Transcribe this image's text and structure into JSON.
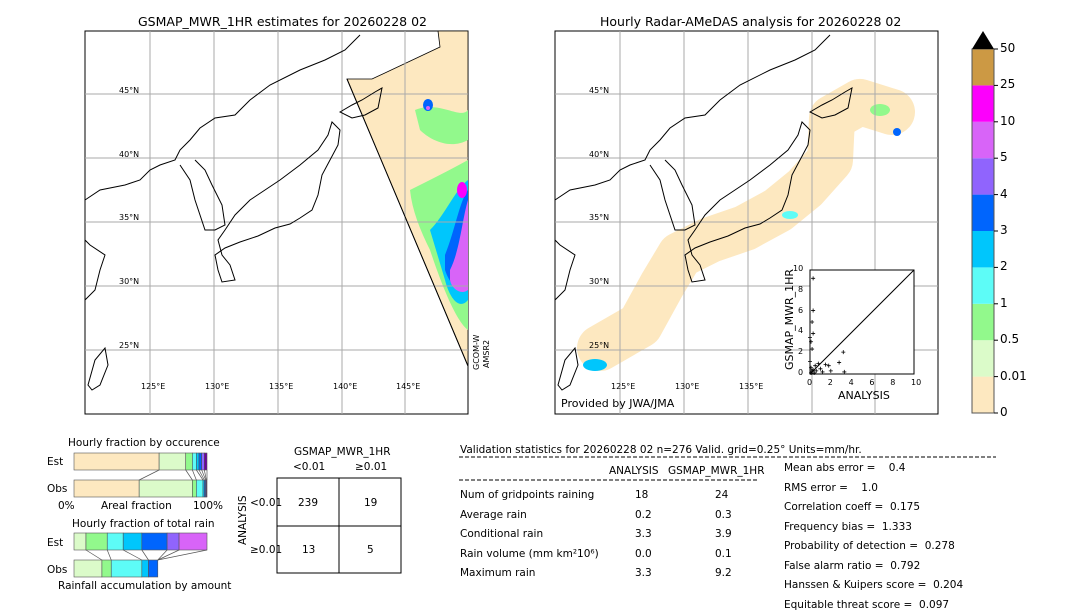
{
  "left_map": {
    "title": "GSMAP_MWR_1HR estimates for 20260228 02",
    "sensor_label_1": "GCOM-W",
    "sensor_label_2": "AMSR2",
    "lat_labels": [
      "45°N",
      "40°N",
      "35°N",
      "30°N",
      "25°N"
    ],
    "lon_labels": [
      "125°E",
      "130°E",
      "135°E",
      "140°E",
      "145°E"
    ]
  },
  "right_map": {
    "title": "Hourly Radar-AMeDAS analysis for 20260228 02",
    "credit": "Provided by JWA/JMA",
    "lat_labels": [
      "45°N",
      "40°N",
      "35°N",
      "30°N",
      "25°N"
    ],
    "lon_labels": [
      "125°E",
      "130°E",
      "135°E"
    ]
  },
  "colorbar": {
    "ticks": [
      "0",
      "0.01",
      "0.5",
      "1",
      "2",
      "3",
      "4",
      "5",
      "10",
      "25",
      "50"
    ],
    "colors": [
      "#fde8c0",
      "#dbfbc9",
      "#92f98c",
      "#5dfcf7",
      "#00c6fc",
      "#0065fd",
      "#9064fd",
      "#d864f8",
      "#fc00fc",
      "#cc9944"
    ],
    "extend_color": "#000000"
  },
  "chart_data": [
    {
      "type": "scatter",
      "xlabel": "ANALYSIS",
      "ylabel": "GSMAP_MWR_1HR",
      "xlim": [
        0,
        10
      ],
      "ylim": [
        0,
        10
      ],
      "xticks": [
        "0",
        "2",
        "4",
        "6",
        "8",
        "10"
      ],
      "yticks": [
        "0",
        "2",
        "4",
        "6",
        "8",
        "10"
      ],
      "points": [
        [
          0.3,
          9.2
        ],
        [
          0.3,
          6.1
        ],
        [
          0.2,
          5.0
        ],
        [
          0.3,
          3.9
        ],
        [
          0.0,
          3.5
        ],
        [
          0.1,
          3.1
        ],
        [
          0.2,
          2.4
        ],
        [
          0.0,
          1.2
        ],
        [
          3.2,
          2.1
        ],
        [
          2.8,
          1.1
        ],
        [
          3.3,
          0.2
        ],
        [
          1.0,
          0.5
        ],
        [
          1.5,
          0.9
        ],
        [
          1.8,
          0.8
        ],
        [
          2.0,
          0.3
        ],
        [
          0.5,
          0.8
        ],
        [
          0.6,
          0.3
        ],
        [
          0.2,
          0.3
        ],
        [
          0.1,
          0.6
        ],
        [
          0.4,
          0.1
        ],
        [
          1.2,
          0.2
        ],
        [
          0.8,
          1.0
        ],
        [
          0.3,
          0.4
        ],
        [
          0.1,
          0.1
        ]
      ]
    },
    {
      "type": "bar",
      "title": "Hourly fraction by occurence",
      "xlabel": "Areal fraction",
      "xtick_left": "0%",
      "xtick_right": "100%",
      "categories": [
        "Est",
        "Obs"
      ],
      "segments": [
        [
          0.64,
          0.2,
          0.05,
          0.03,
          0.02,
          0.02,
          0.02,
          0.02
        ],
        [
          0.49,
          0.4,
          0.03,
          0.05,
          0.01,
          0.01,
          0.005,
          0.005
        ]
      ]
    },
    {
      "type": "bar",
      "title": "Hourly fraction of total rain",
      "xlabel": "Rainfall accumulation by amount",
      "categories": [
        "Est",
        "Obs"
      ],
      "segments": [
        [
          0.09,
          0.16,
          0.12,
          0.14,
          0.19,
          0.09,
          0.21
        ],
        [
          0.21,
          0.07,
          0.23,
          0.05,
          0.07,
          0,
          0
        ]
      ]
    },
    {
      "type": "table",
      "title": "GSMAP_MWR_1HR",
      "col_headers": [
        "<0.01",
        "≥0.01"
      ],
      "row_label": "ANALYSIS",
      "row_headers": [
        "<0.01",
        "≥0.01"
      ],
      "cells": [
        [
          "239",
          "19"
        ],
        [
          "13",
          "5"
        ]
      ]
    }
  ],
  "stats": {
    "header": "Validation statistics for 20260228 02  n=276 Valid. grid=0.25° Units=mm/hr.",
    "col_headers": [
      "ANALYSIS",
      "GSMAP_MWR_1HR"
    ],
    "rows": [
      {
        "label": "Num of gridpoints raining",
        "a": "18",
        "g": "24"
      },
      {
        "label": "Average rain",
        "a": "0.2",
        "g": "0.3"
      },
      {
        "label": "Conditional rain",
        "a": "3.3",
        "g": "3.9"
      },
      {
        "label": "Rain volume (mm km²10⁶)",
        "a": "0.0",
        "g": "0.1"
      },
      {
        "label": "Maximum rain",
        "a": "3.3",
        "g": "9.2"
      }
    ],
    "scores": [
      "Mean abs error =    0.4",
      "RMS error =    1.0",
      "Correlation coeff =  0.175",
      "Frequency bias =  1.333",
      "Probability of detection =  0.278",
      "False alarm ratio =  0.792",
      "Hanssen & Kuipers score =  0.204",
      "Equitable threat score =  0.097"
    ]
  }
}
